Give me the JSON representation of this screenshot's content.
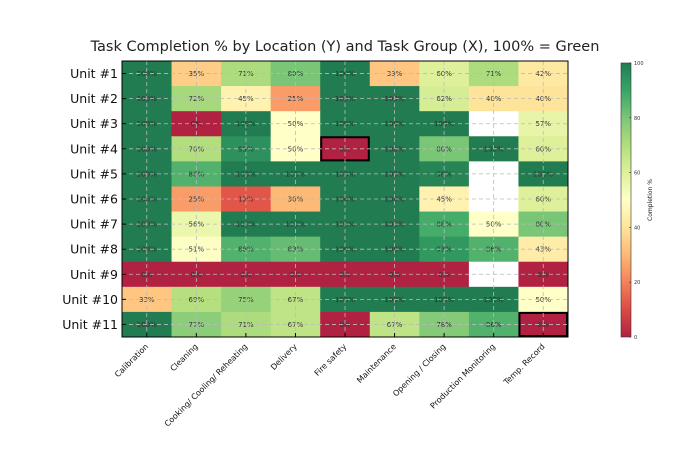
{
  "chart_data": {
    "type": "heatmap",
    "title": "Task Completion % by Location (Y) and Task Group (X), 100% = Green",
    "x_categories": [
      "Calibration",
      "Cleaning",
      "Cooking/ Cooling/ Reheating",
      "Delivery",
      "Fire safety",
      "Maintenance",
      "Opening / Closing",
      "Production Monitoring",
      "Temp. Record"
    ],
    "y_categories": [
      "Unit #1",
      "Unit #2",
      "Unit #3",
      "Unit #4",
      "Unit #5",
      "Unit #6",
      "Unit #7",
      "Unit #8",
      "Unit #9",
      "Unit #10",
      "Unit #11"
    ],
    "values": [
      [
        100,
        35,
        71,
        80,
        100,
        33,
        60,
        71,
        42
      ],
      [
        100,
        72,
        45,
        25,
        100,
        100,
        62,
        40,
        40
      ],
      [
        100,
        0,
        100,
        50,
        100,
        100,
        100,
        null,
        57
      ],
      [
        100,
        70,
        95,
        50,
        0,
        100,
        80,
        100,
        60
      ],
      [
        100,
        86,
        100,
        100,
        100,
        100,
        98,
        null,
        100
      ],
      [
        100,
        25,
        12,
        30,
        100,
        100,
        45,
        null,
        60
      ],
      [
        100,
        56,
        100,
        100,
        100,
        100,
        88,
        50,
        80
      ],
      [
        100,
        51,
        86,
        83,
        100,
        100,
        93,
        86,
        43
      ],
      [
        0,
        0,
        0,
        0,
        0,
        0,
        0,
        null,
        0
      ],
      [
        33,
        69,
        75,
        67,
        100,
        100,
        100,
        100,
        50
      ],
      [
        100,
        77,
        71,
        67,
        0,
        67,
        78,
        86,
        0
      ]
    ],
    "highlighted_cells": [
      [
        "Unit #4",
        "Fire safety"
      ],
      [
        "Unit #11",
        "Temp. Record"
      ]
    ],
    "value_format": "%",
    "colormap": "RdYlGn",
    "colorbar": {
      "label": "Completion %",
      "range": [
        0,
        100
      ],
      "ticks": [
        0,
        20,
        40,
        60,
        80,
        100
      ]
    },
    "grid": true
  }
}
